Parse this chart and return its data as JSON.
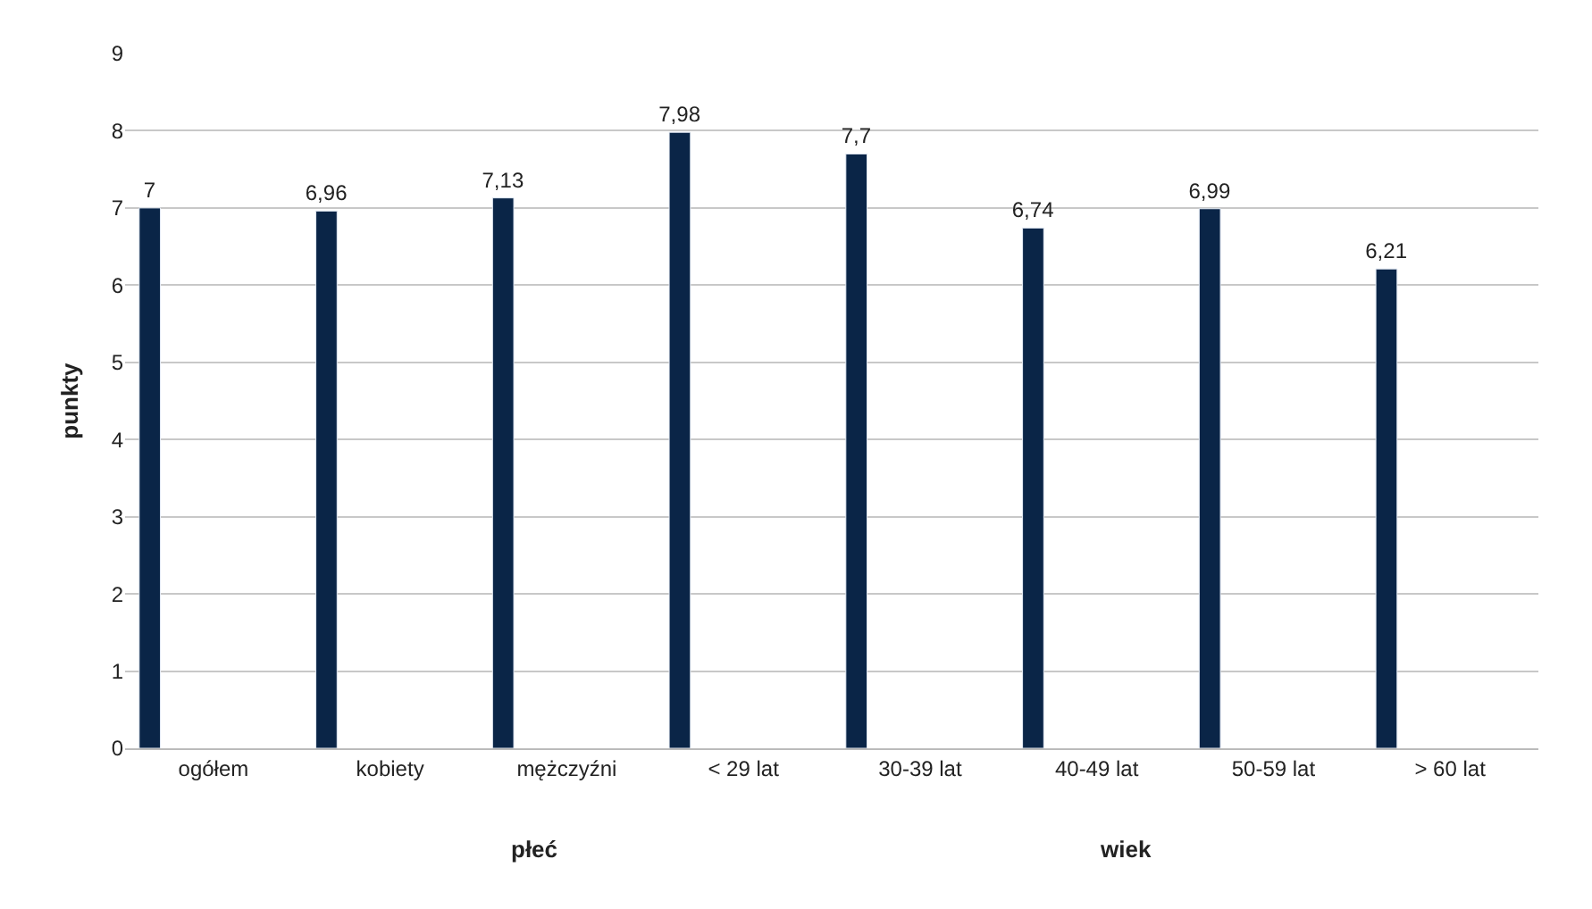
{
  "chart_data": {
    "type": "bar",
    "ylabel": "punkty",
    "categories": [
      "ogółem",
      "kobiety",
      "mężczyźni",
      "< 29 lat",
      "30-39 lat",
      "40-49 lat",
      "50-59 lat",
      "> 60 lat"
    ],
    "values": [
      7,
      6.96,
      7.13,
      7.98,
      7.7,
      6.74,
      6.99,
      6.21
    ],
    "value_labels": [
      "7",
      "6,96",
      "7,13",
      "7,98",
      "7,7",
      "6,74",
      "6,99",
      "6,21"
    ],
    "color": "#0a2547",
    "ylim": [
      0,
      9
    ],
    "yticks": [
      0,
      1,
      2,
      3,
      4,
      5,
      6,
      7,
      8,
      9
    ],
    "grid": "y",
    "annotations": [
      "płeć",
      "wiek"
    ]
  }
}
